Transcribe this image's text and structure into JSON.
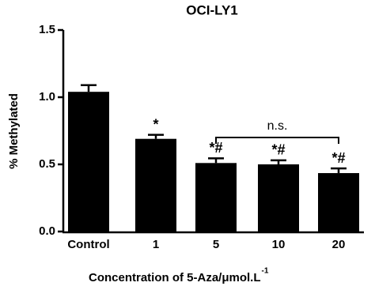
{
  "chart_data": {
    "type": "bar",
    "title": "OCI-LY1",
    "y_label": "% Methylated",
    "x_label": "Concentration of 5-Aza/μmol.L",
    "x_label_superscript": "-1",
    "categories": [
      "Control",
      "1",
      "5",
      "10",
      "20"
    ],
    "values": [
      1.04,
      0.69,
      0.51,
      0.5,
      0.435
    ],
    "errors": [
      0.05,
      0.03,
      0.035,
      0.03,
      0.035
    ],
    "value_annotations": [
      null,
      "*",
      "*#",
      "*#",
      "*#"
    ],
    "bracket": {
      "label": "n.s.",
      "from": "5",
      "to": "20"
    },
    "color": "#000000",
    "ylim": [
      0,
      1.5
    ],
    "yticks": [
      {
        "value": 0,
        "label": "0.0"
      },
      {
        "value": 0.5,
        "label": "0.5"
      },
      {
        "value": 1.0,
        "label": "1.0"
      },
      {
        "value": 1.5,
        "label": "1.5"
      }
    ],
    "grid": false
  }
}
